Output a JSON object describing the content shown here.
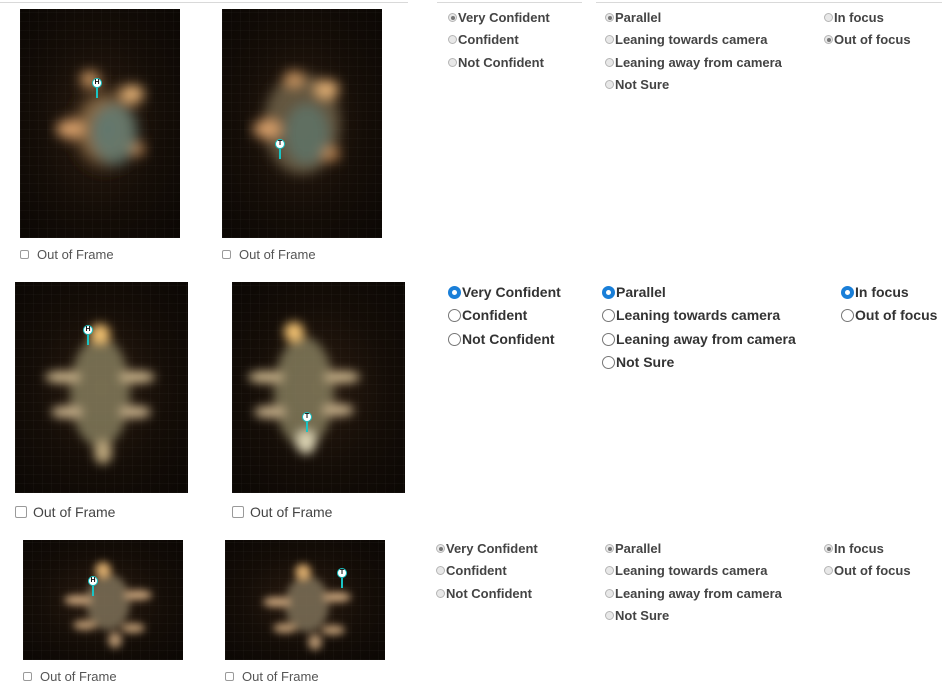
{
  "rows": [
    {
      "images": [
        {
          "checkbox_label": "Out of Frame",
          "marker": "H"
        },
        {
          "checkbox_label": "Out of Frame",
          "marker": "T"
        }
      ],
      "confidence": {
        "options": [
          "Very Confident",
          "Confident",
          "Not Confident"
        ],
        "selected": "Very Confident"
      },
      "orientation": {
        "options": [
          "Parallel",
          "Leaning towards camera",
          "Leaning away from camera",
          "Not Sure"
        ],
        "selected": "Parallel"
      },
      "focus": {
        "options": [
          "In focus",
          "Out of focus"
        ],
        "selected": "Out of focus"
      }
    },
    {
      "images": [
        {
          "checkbox_label": "Out of Frame",
          "marker": "H"
        },
        {
          "checkbox_label": "Out of Frame",
          "marker": "T"
        }
      ],
      "confidence": {
        "options": [
          "Very Confident",
          "Confident",
          "Not Confident"
        ],
        "selected": "Very Confident"
      },
      "orientation": {
        "options": [
          "Parallel",
          "Leaning towards camera",
          "Leaning away from camera",
          "Not Sure"
        ],
        "selected": "Parallel"
      },
      "focus": {
        "options": [
          "In focus",
          "Out of focus"
        ],
        "selected": "In focus"
      }
    },
    {
      "images": [
        {
          "checkbox_label": "Out of Frame",
          "marker": "H"
        },
        {
          "checkbox_label": "Out of Frame",
          "marker": "T"
        }
      ],
      "confidence": {
        "options": [
          "Very Confident",
          "Confident",
          "Not Confident"
        ],
        "selected": "Very Confident"
      },
      "orientation": {
        "options": [
          "Parallel",
          "Leaning towards camera",
          "Leaning away from camera",
          "Not Sure"
        ],
        "selected": "Parallel"
      },
      "focus": {
        "options": [
          "In focus",
          "Out of focus"
        ],
        "selected": "In focus"
      }
    }
  ],
  "colors": {
    "marker_ring": "#19c4c4",
    "selected_radio": "#1a7fd8"
  }
}
